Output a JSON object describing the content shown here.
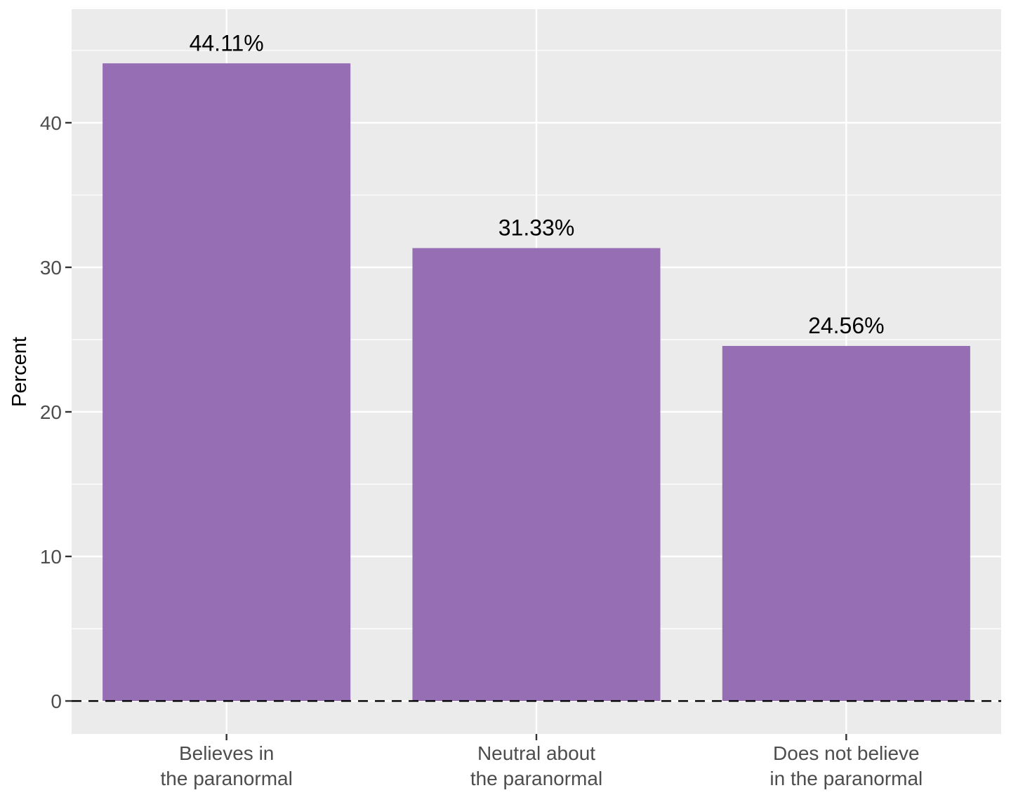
{
  "chart_data": {
    "type": "bar",
    "title": "",
    "xlabel": "",
    "ylabel": "Percent",
    "categories": [
      [
        "Believes in",
        "the paranormal"
      ],
      [
        "Neutral about",
        "the paranormal"
      ],
      [
        "Does not believe",
        "in the paranormal"
      ]
    ],
    "values": [
      44.11,
      31.33,
      24.56
    ],
    "data_labels": [
      "44.11%",
      "31.33%",
      "24.56%"
    ],
    "yticks": [
      0,
      10,
      20,
      30,
      40
    ],
    "ylim": [
      -2.28,
      47.86
    ],
    "grid": true,
    "reference_line": {
      "y": 0,
      "style": "dashed",
      "color": "#000000"
    },
    "colors": {
      "bar": "#966EB4",
      "panel": "#EBEBEB",
      "grid": "#FFFFFF"
    }
  }
}
